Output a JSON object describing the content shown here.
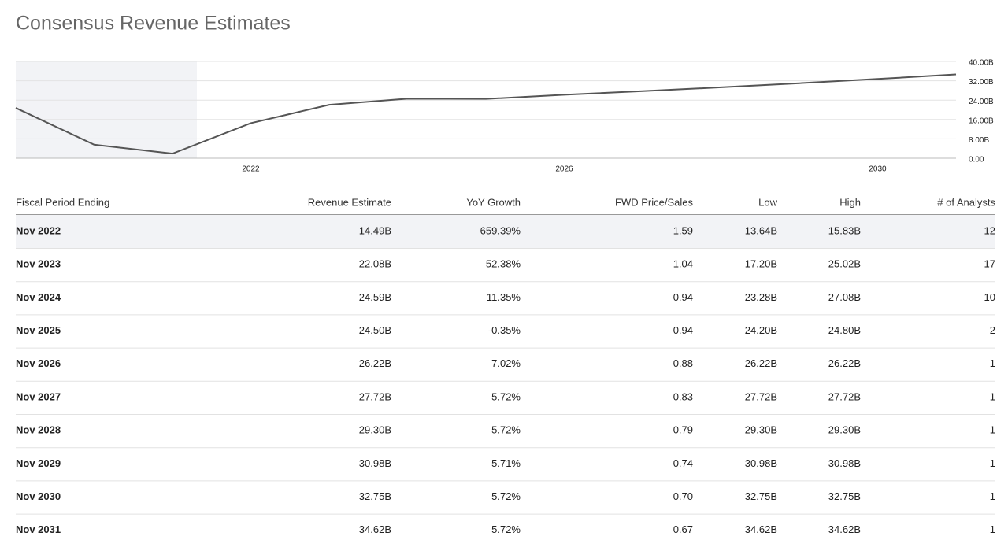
{
  "title": "Consensus Revenue Estimates",
  "chart_data": {
    "type": "line",
    "color": "#555555",
    "x": [
      2019,
      2020,
      2021,
      2022,
      2023,
      2024,
      2025,
      2026,
      2027,
      2028,
      2029,
      2030,
      2031
    ],
    "values": [
      20.8,
      5.6,
      1.9,
      14.49,
      22.08,
      24.59,
      24.5,
      26.22,
      27.72,
      29.3,
      30.98,
      32.75,
      34.62
    ],
    "xlim": [
      2019,
      2031
    ],
    "xticks": [
      2022,
      2026,
      2030
    ],
    "ylim": [
      0,
      40
    ],
    "yticks": [
      {
        "value": 0,
        "label": "0.00"
      },
      {
        "value": 8,
        "label": "8.00B"
      },
      {
        "value": 16,
        "label": "16.00B"
      },
      {
        "value": 24,
        "label": "24.00B"
      },
      {
        "value": 32,
        "label": "32.00B"
      },
      {
        "value": 40,
        "label": "40.00B"
      }
    ],
    "grid": true
  },
  "table": {
    "columns": [
      "Fiscal Period Ending",
      "Revenue Estimate",
      "YoY Growth",
      "FWD Price/Sales",
      "Low",
      "High",
      "# of Analysts"
    ],
    "rows": [
      [
        "Nov 2022",
        "14.49B",
        "659.39%",
        "1.59",
        "13.64B",
        "15.83B",
        "12"
      ],
      [
        "Nov 2023",
        "22.08B",
        "52.38%",
        "1.04",
        "17.20B",
        "25.02B",
        "17"
      ],
      [
        "Nov 2024",
        "24.59B",
        "11.35%",
        "0.94",
        "23.28B",
        "27.08B",
        "10"
      ],
      [
        "Nov 2025",
        "24.50B",
        "-0.35%",
        "0.94",
        "24.20B",
        "24.80B",
        "2"
      ],
      [
        "Nov 2026",
        "26.22B",
        "7.02%",
        "0.88",
        "26.22B",
        "26.22B",
        "1"
      ],
      [
        "Nov 2027",
        "27.72B",
        "5.72%",
        "0.83",
        "27.72B",
        "27.72B",
        "1"
      ],
      [
        "Nov 2028",
        "29.30B",
        "5.72%",
        "0.79",
        "29.30B",
        "29.30B",
        "1"
      ],
      [
        "Nov 2029",
        "30.98B",
        "5.71%",
        "0.74",
        "30.98B",
        "30.98B",
        "1"
      ],
      [
        "Nov 2030",
        "32.75B",
        "5.72%",
        "0.70",
        "32.75B",
        "32.75B",
        "1"
      ],
      [
        "Nov 2031",
        "34.62B",
        "5.72%",
        "0.67",
        "34.62B",
        "34.62B",
        "1"
      ]
    ]
  }
}
